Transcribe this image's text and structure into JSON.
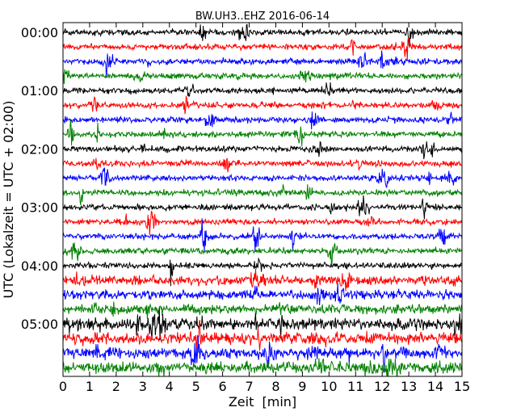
{
  "chart_data": {
    "type": "line",
    "title": "BW.UH3..EHZ 2016-06-14",
    "xlabel": "Zeit  [min]",
    "ylabel": "UTC (Lokalzeit = UTC + 02:00)",
    "xlim": [
      0,
      15
    ],
    "x_ticks": [
      "0",
      "1",
      "2",
      "3",
      "4",
      "5",
      "6",
      "7",
      "8",
      "9",
      "10",
      "11",
      "12",
      "13",
      "14",
      "15"
    ],
    "y_ticks": [
      "00:00",
      "01:00",
      "02:00",
      "03:00",
      "04:00",
      "05:00"
    ],
    "trace_minutes": 15,
    "trace_count": 24,
    "trace_colors": [
      "#000000",
      "#ff0000",
      "#0000ff",
      "#008000"
    ],
    "grid": false,
    "legend": "none"
  }
}
